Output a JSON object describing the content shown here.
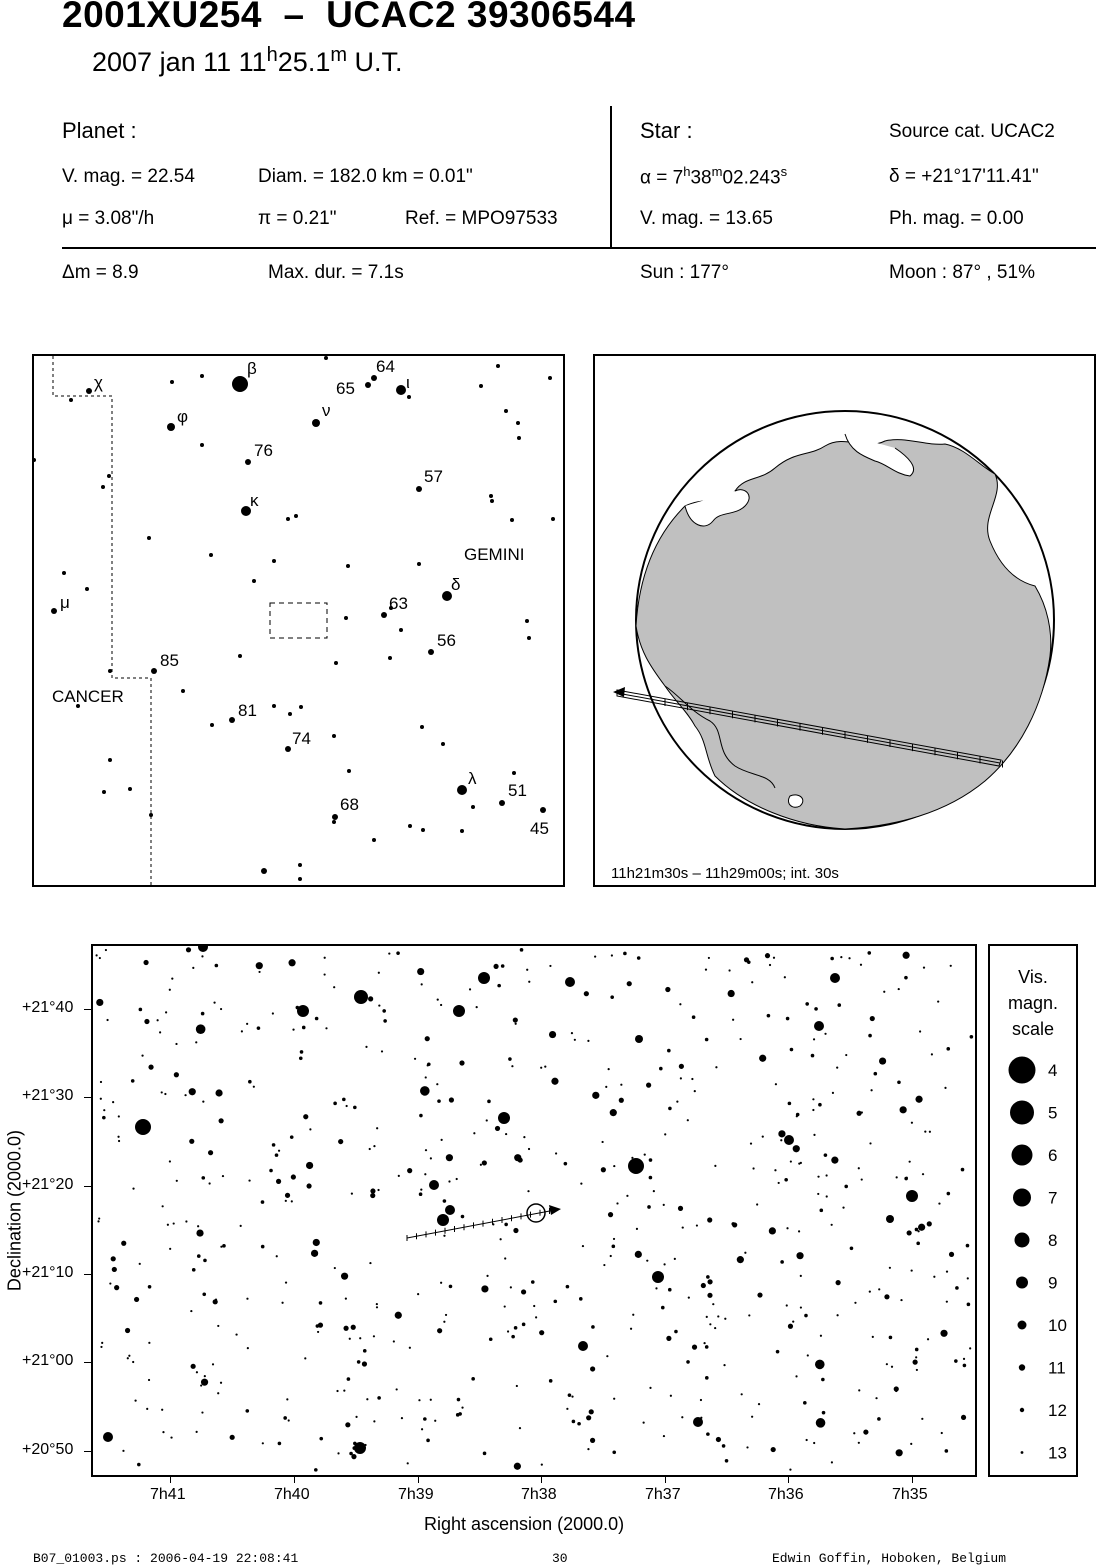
{
  "header": {
    "object": "2001XU254",
    "dash": "–",
    "star": "UCAC2 39306544",
    "date": "2007 jan 11  11",
    "h_sup": "h",
    "time": "25.1",
    "m_sup": "m",
    "ut": " U.T."
  },
  "planet": {
    "heading": "Planet :",
    "vmag": "V. mag. = 22.54",
    "diam": "Diam. = 182.0 km = 0.01\"",
    "mu": "μ =  3.08\"/h",
    "pi": "π =  0.21\"",
    "ref": "Ref. = MPO97533"
  },
  "star": {
    "heading": "Star :",
    "source": "Source cat.  UCAC2",
    "ra_prefix": "α =  7",
    "ra_h": "h",
    "ra_mid": "38",
    "ra_m": "m",
    "ra_sec": "02.243",
    "ra_s": "s",
    "dec": "δ = +21°17'11.41\"",
    "vmag": "V. mag. = 13.65",
    "phmag": "Ph. mag. =  0.00"
  },
  "event": {
    "dm": "Δm = 8.9",
    "maxdur": "Max. dur. = 7.1s",
    "sun": "Sun : 177°",
    "moon": "Moon :  87° , 51%"
  },
  "finder": {
    "constellations": [
      "GEMINI",
      "CANCER"
    ],
    "labels": [
      "χ",
      "β",
      "64",
      "65",
      "ι",
      "φ",
      "ν",
      "76",
      "57",
      "κ",
      "μ",
      "δ",
      "63",
      "56",
      "85",
      "81",
      "74",
      "λ",
      "51",
      "68",
      "45"
    ]
  },
  "globe": {
    "caption": "11h21m30s – 11h29m00s; int. 30s"
  },
  "chart": {
    "xlabel": "Right ascension (2000.0)",
    "ylabel": "Declination (2000.0)",
    "xticks": [
      "7h41",
      "7h40",
      "7h39",
      "7h38",
      "7h37",
      "7h36",
      "7h35"
    ],
    "yticks": [
      "+21°40",
      "+21°30",
      "+21°20",
      "+21°10",
      "+21°00",
      "+20°50"
    ]
  },
  "scale": {
    "title": [
      "Vis.",
      "magn.",
      "scale"
    ],
    "mags": [
      "4",
      "5",
      "6",
      "7",
      "8",
      "9",
      "10",
      "11",
      "12",
      "13"
    ]
  },
  "footer": {
    "file": "B07_01003.ps : 2006-04-19 22:08:41",
    "page": "30",
    "author": "Edwin Goffin, Hoboken, Belgium"
  }
}
